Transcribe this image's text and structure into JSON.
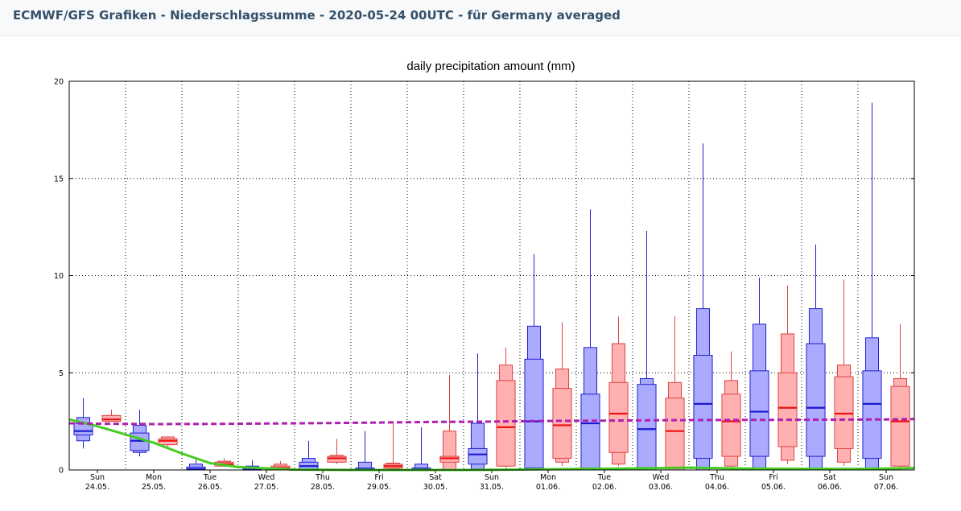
{
  "header": {
    "title": "ECMWF/GFS Grafiken - Niederschlagssumme - 2020-05-24 00UTC - für Germany averaged"
  },
  "colors": {
    "ecmwf_box_fill": "#aaaaff",
    "ecmwf_stroke": "#2222cc",
    "ecmwf_median": "#1a1ad0",
    "gfs_box_fill": "#ffb0b0",
    "gfs_stroke": "#dd4444",
    "gfs_median": "#ee1111",
    "climate_line": "#b020b0",
    "control_line": "#44cc22"
  },
  "chart_data": {
    "type": "boxplot",
    "title": "daily precipitation amount (mm)",
    "ylim": [
      0,
      20
    ],
    "y_ticks": [
      "0",
      "5",
      "10",
      "15",
      "20"
    ],
    "grid": true,
    "days": [
      {
        "day": "Sun",
        "date": "24.05."
      },
      {
        "day": "Mon",
        "date": "25.05."
      },
      {
        "day": "Tue",
        "date": "26.05."
      },
      {
        "day": "Wed",
        "date": "27.05."
      },
      {
        "day": "Thu",
        "date": "28.05."
      },
      {
        "day": "Fri",
        "date": "29.05."
      },
      {
        "day": "Sat",
        "date": "30.05."
      },
      {
        "day": "Sun",
        "date": "31.05."
      },
      {
        "day": "Mon",
        "date": "01.06."
      },
      {
        "day": "Tue",
        "date": "02.06."
      },
      {
        "day": "Wed",
        "date": "03.06."
      },
      {
        "day": "Thu",
        "date": "04.06."
      },
      {
        "day": "Fri",
        "date": "05.06."
      },
      {
        "day": "Sat",
        "date": "06.06."
      },
      {
        "day": "Sun",
        "date": "07.06."
      }
    ],
    "series": [
      {
        "name": "ECMWF",
        "boxes": [
          {
            "min": 1.1,
            "q10": 1.5,
            "q25": 1.8,
            "median": 2.0,
            "q75": 2.4,
            "q90": 2.7,
            "max": 3.7
          },
          {
            "min": 0.7,
            "q10": 0.9,
            "q25": 1.0,
            "median": 1.5,
            "q75": 1.9,
            "q90": 2.3,
            "max": 3.1
          },
          {
            "min": 0.0,
            "q10": 0.0,
            "q25": 0.0,
            "median": 0.05,
            "q75": 0.15,
            "q90": 0.3,
            "max": 0.6
          },
          {
            "min": 0.0,
            "q10": 0.0,
            "q25": 0.0,
            "median": 0.02,
            "q75": 0.1,
            "q90": 0.2,
            "max": 0.5
          },
          {
            "min": 0.0,
            "q10": 0.0,
            "q25": 0.05,
            "median": 0.2,
            "q75": 0.4,
            "q90": 0.6,
            "max": 1.5
          },
          {
            "min": 0.0,
            "q10": 0.0,
            "q25": 0.0,
            "median": 0.05,
            "q75": 0.1,
            "q90": 0.4,
            "max": 2.0
          },
          {
            "min": 0.0,
            "q10": 0.0,
            "q25": 0.0,
            "median": 0.05,
            "q75": 0.1,
            "q90": 0.3,
            "max": 2.2
          },
          {
            "min": 0.0,
            "q10": 0.05,
            "q25": 0.3,
            "median": 0.8,
            "q75": 1.1,
            "q90": 2.4,
            "max": 6.0
          },
          {
            "min": 0.0,
            "q10": 0.0,
            "q25": 0.1,
            "median": 2.5,
            "q75": 5.7,
            "q90": 7.4,
            "max": 11.1
          },
          {
            "min": 0.0,
            "q10": 0.0,
            "q25": 0.1,
            "median": 2.4,
            "q75": 3.9,
            "q90": 6.3,
            "max": 13.4
          },
          {
            "min": 0.0,
            "q10": 0.0,
            "q25": 0.0,
            "median": 2.1,
            "q75": 4.4,
            "q90": 4.7,
            "max": 12.3
          },
          {
            "min": 0.0,
            "q10": 0.0,
            "q25": 0.6,
            "median": 3.4,
            "q75": 5.9,
            "q90": 8.3,
            "max": 16.8
          },
          {
            "min": 0.0,
            "q10": 0.0,
            "q25": 0.7,
            "median": 3.0,
            "q75": 5.1,
            "q90": 7.5,
            "max": 9.9
          },
          {
            "min": 0.0,
            "q10": 0.0,
            "q25": 0.7,
            "median": 3.2,
            "q75": 6.5,
            "q90": 8.3,
            "max": 11.6
          },
          {
            "min": 0.0,
            "q10": 0.0,
            "q25": 0.6,
            "median": 3.4,
            "q75": 5.1,
            "q90": 6.8,
            "max": 18.9
          }
        ]
      },
      {
        "name": "GFS",
        "boxes": [
          {
            "min": 2.5,
            "q10": 2.5,
            "q25": 2.5,
            "median": 2.6,
            "q75": 2.8,
            "q90": 2.8,
            "max": 3.1
          },
          {
            "min": 1.2,
            "q10": 1.3,
            "q25": 1.3,
            "median": 1.5,
            "q75": 1.6,
            "q90": 1.7,
            "max": 1.7
          },
          {
            "min": 0.15,
            "q10": 0.2,
            "q25": 0.2,
            "median": 0.3,
            "q75": 0.4,
            "q90": 0.45,
            "max": 0.6
          },
          {
            "min": 0.0,
            "q10": 0.0,
            "q25": 0.0,
            "median": 0.1,
            "q75": 0.2,
            "q90": 0.3,
            "max": 0.45
          },
          {
            "min": 0.3,
            "q10": 0.4,
            "q25": 0.4,
            "median": 0.6,
            "q75": 0.7,
            "q90": 0.75,
            "max": 1.6
          },
          {
            "min": 0.0,
            "q10": 0.05,
            "q25": 0.1,
            "median": 0.2,
            "q75": 0.3,
            "q90": 0.35,
            "max": 2.5
          },
          {
            "min": 0.0,
            "q10": 0.0,
            "q25": 0.4,
            "median": 0.6,
            "q75": 0.7,
            "q90": 2.0,
            "max": 4.9
          },
          {
            "min": 0.1,
            "q10": 0.2,
            "q25": 0.2,
            "median": 2.2,
            "q75": 4.6,
            "q90": 5.4,
            "max": 6.3
          },
          {
            "min": 0.2,
            "q10": 0.4,
            "q25": 0.6,
            "median": 2.3,
            "q75": 4.2,
            "q90": 5.2,
            "max": 7.6
          },
          {
            "min": 0.2,
            "q10": 0.3,
            "q25": 0.9,
            "median": 2.9,
            "q75": 4.5,
            "q90": 6.5,
            "max": 7.9
          },
          {
            "min": 0.0,
            "q10": 0.0,
            "q25": 0.0,
            "median": 2.0,
            "q75": 3.7,
            "q90": 4.5,
            "max": 7.9
          },
          {
            "min": 0.1,
            "q10": 0.2,
            "q25": 0.7,
            "median": 2.5,
            "q75": 3.9,
            "q90": 4.6,
            "max": 6.1
          },
          {
            "min": 0.3,
            "q10": 0.5,
            "q25": 1.2,
            "median": 3.2,
            "q75": 5.0,
            "q90": 7.0,
            "max": 9.5
          },
          {
            "min": 0.2,
            "q10": 0.4,
            "q25": 1.1,
            "median": 2.9,
            "q75": 4.8,
            "q90": 5.4,
            "max": 9.8
          },
          {
            "min": 0.0,
            "q10": 0.2,
            "q25": 0.2,
            "median": 2.5,
            "q75": 4.3,
            "q90": 4.7,
            "max": 7.5
          }
        ]
      }
    ],
    "climate_line": {
      "x": [
        0,
        0.5,
        1.5,
        2.5,
        3.5,
        4.5,
        5.5,
        6.5,
        7.5,
        8.5,
        9.5,
        10.5,
        11.5,
        12.5,
        13.5,
        14.5,
        15
      ],
      "values": [
        2.4,
        2.38,
        2.36,
        2.37,
        2.39,
        2.41,
        2.44,
        2.47,
        2.49,
        2.52,
        2.54,
        2.56,
        2.57,
        2.58,
        2.59,
        2.6,
        2.62
      ]
    },
    "control_line": {
      "x": [
        0,
        0.5,
        1.5,
        2.0,
        2.5,
        3.0,
        4.0,
        5.0,
        6.0,
        7.0,
        8.0,
        9.0,
        10.0,
        11.0,
        12.0,
        13.0,
        14.0,
        15.0
      ],
      "values": [
        2.6,
        2.25,
        1.4,
        0.85,
        0.35,
        0.15,
        0.02,
        0.0,
        0.0,
        0.0,
        0.02,
        0.05,
        0.08,
        0.12,
        0.07,
        0.06,
        0.05,
        0.1
      ]
    }
  }
}
